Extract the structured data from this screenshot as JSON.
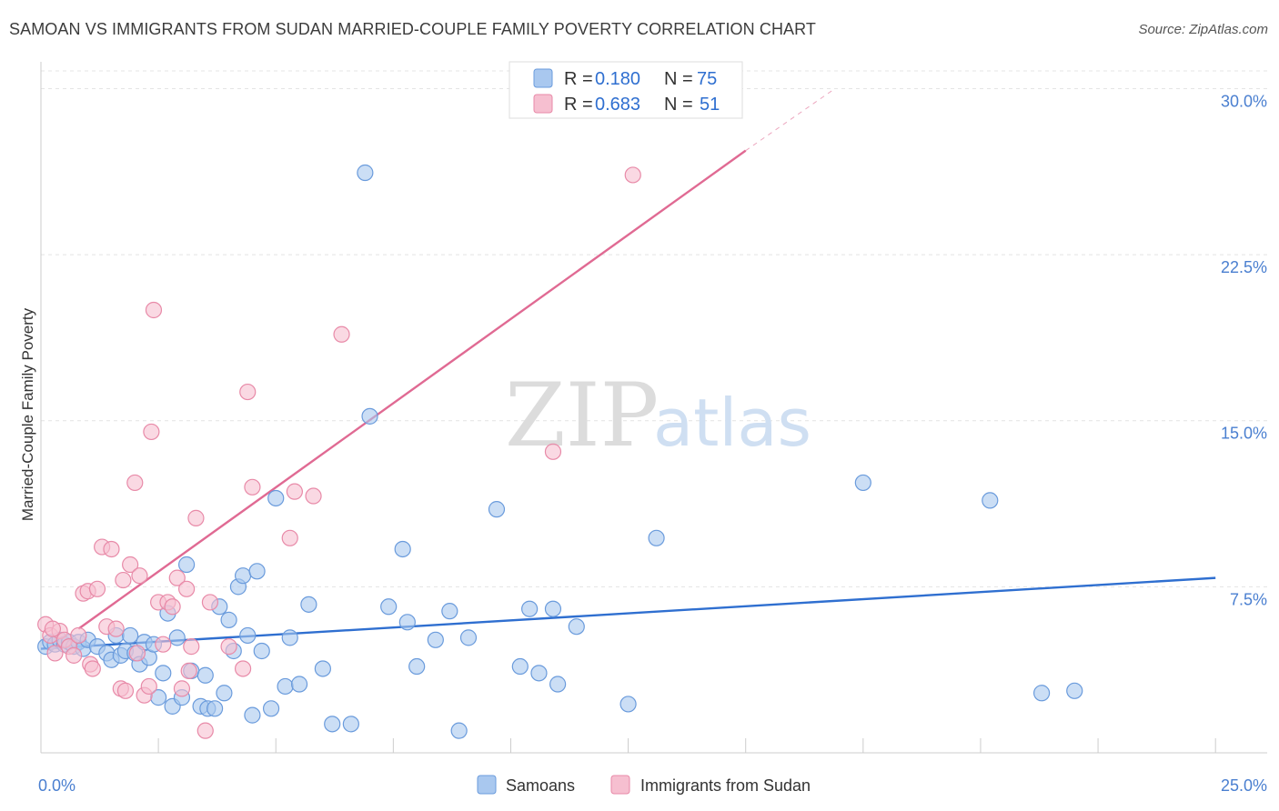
{
  "title": "SAMOAN VS IMMIGRANTS FROM SUDAN MARRIED-COUPLE FAMILY POVERTY CORRELATION CHART",
  "source": "Source: ZipAtlas.com",
  "watermark": {
    "zip": "ZIP",
    "atlas": "atlas"
  },
  "colors": {
    "blue_fill": "#a9c8ef",
    "blue_stroke": "#6a9bdc",
    "blue_line": "#2f6fd0",
    "pink_fill": "#f6bfd0",
    "pink_stroke": "#e88aa8",
    "pink_line": "#e06a93",
    "grid": "#e4e4e4",
    "tick_text": "#4a7fd0"
  },
  "legend": {
    "rows": [
      {
        "r_label": "R =",
        "r_value": "0.180",
        "n_label": "N =",
        "n_value": "75"
      },
      {
        "r_label": "R =",
        "r_value": "0.683",
        "n_label": "N =",
        "n_value": "51"
      }
    ]
  },
  "chart_data": {
    "type": "scatter",
    "title": "SAMOAN VS IMMIGRANTS FROM SUDAN MARRIED-COUPLE FAMILY POVERTY CORRELATION CHART",
    "xlabel": "",
    "ylabel": "Married-Couple Family Poverty",
    "xlim": [
      0,
      26.1
    ],
    "ylim": [
      0,
      30.8
    ],
    "x_tick_labels": [
      {
        "value": 0,
        "label": "0.0%"
      },
      {
        "value": 25,
        "label": "25.0%"
      }
    ],
    "y_tick_labels": [
      {
        "value": 7.5,
        "label": "7.5%"
      },
      {
        "value": 15,
        "label": "15.0%"
      },
      {
        "value": 22.5,
        "label": "22.5%"
      },
      {
        "value": 30,
        "label": "30.0%"
      }
    ],
    "x_minor_ticks": [
      2.5,
      5,
      7.5,
      10,
      12.5,
      15,
      17.5,
      20,
      22.5,
      25
    ],
    "series": [
      {
        "name": "Samoans",
        "color": "#a9c8ef",
        "trend": {
          "x0": 0,
          "y0": 4.7,
          "x1": 25,
          "y1": 7.9
        },
        "points": [
          [
            0.1,
            4.8
          ],
          [
            0.2,
            5.0
          ],
          [
            0.3,
            4.9
          ],
          [
            0.4,
            5.1
          ],
          [
            0.5,
            4.9
          ],
          [
            0.6,
            5.0
          ],
          [
            0.7,
            4.8
          ],
          [
            0.8,
            5.0
          ],
          [
            0.9,
            4.7
          ],
          [
            1.0,
            5.1
          ],
          [
            1.2,
            4.8
          ],
          [
            1.4,
            4.5
          ],
          [
            1.5,
            4.2
          ],
          [
            1.6,
            5.3
          ],
          [
            1.7,
            4.4
          ],
          [
            1.8,
            4.6
          ],
          [
            1.9,
            5.3
          ],
          [
            2.0,
            4.5
          ],
          [
            2.1,
            4.0
          ],
          [
            2.2,
            5.0
          ],
          [
            2.3,
            4.3
          ],
          [
            2.4,
            4.9
          ],
          [
            2.5,
            2.5
          ],
          [
            2.6,
            3.6
          ],
          [
            2.7,
            6.3
          ],
          [
            2.8,
            2.1
          ],
          [
            2.9,
            5.2
          ],
          [
            3.0,
            2.5
          ],
          [
            3.1,
            8.5
          ],
          [
            3.2,
            3.7
          ],
          [
            3.4,
            2.1
          ],
          [
            3.5,
            3.5
          ],
          [
            3.55,
            2.0
          ],
          [
            3.7,
            2.0
          ],
          [
            3.8,
            6.6
          ],
          [
            3.9,
            2.7
          ],
          [
            4.0,
            6.0
          ],
          [
            4.1,
            4.6
          ],
          [
            4.2,
            7.5
          ],
          [
            4.3,
            8.0
          ],
          [
            4.4,
            5.3
          ],
          [
            4.5,
            1.7
          ],
          [
            4.6,
            8.2
          ],
          [
            4.7,
            4.6
          ],
          [
            4.9,
            2.0
          ],
          [
            5.0,
            11.5
          ],
          [
            5.2,
            3.0
          ],
          [
            5.3,
            5.2
          ],
          [
            5.5,
            3.1
          ],
          [
            5.7,
            6.7
          ],
          [
            6.0,
            3.8
          ],
          [
            6.2,
            1.3
          ],
          [
            6.6,
            1.3
          ],
          [
            6.9,
            26.2
          ],
          [
            7.0,
            15.2
          ],
          [
            7.4,
            6.6
          ],
          [
            7.7,
            9.2
          ],
          [
            7.8,
            5.9
          ],
          [
            8.0,
            3.9
          ],
          [
            8.4,
            5.1
          ],
          [
            8.7,
            6.4
          ],
          [
            8.9,
            1.0
          ],
          [
            9.1,
            5.2
          ],
          [
            9.7,
            11.0
          ],
          [
            10.2,
            3.9
          ],
          [
            10.4,
            6.5
          ],
          [
            10.6,
            3.6
          ],
          [
            10.9,
            6.5
          ],
          [
            11.0,
            3.1
          ],
          [
            11.4,
            5.7
          ],
          [
            12.5,
            2.2
          ],
          [
            13.1,
            9.7
          ],
          [
            17.5,
            12.2
          ],
          [
            20.2,
            11.4
          ],
          [
            21.3,
            2.7
          ],
          [
            22.0,
            2.8
          ]
        ]
      },
      {
        "name": "Immigrants from Sudan",
        "color": "#f6bfd0",
        "trend": {
          "x0": 0.8,
          "y0": 5.6,
          "x1": 15.0,
          "y1": 27.2
        },
        "trend_dashed_to": {
          "x": 16.9,
          "y": 30.0
        },
        "points": [
          [
            0.1,
            5.8
          ],
          [
            0.2,
            5.3
          ],
          [
            0.3,
            4.5
          ],
          [
            0.4,
            5.5
          ],
          [
            0.5,
            5.1
          ],
          [
            0.6,
            4.8
          ],
          [
            0.7,
            4.4
          ],
          [
            0.8,
            5.3
          ],
          [
            0.9,
            7.2
          ],
          [
            1.0,
            7.3
          ],
          [
            1.05,
            4.0
          ],
          [
            1.1,
            3.8
          ],
          [
            1.2,
            7.4
          ],
          [
            1.3,
            9.3
          ],
          [
            1.4,
            5.7
          ],
          [
            1.5,
            9.2
          ],
          [
            1.6,
            5.6
          ],
          [
            1.7,
            2.9
          ],
          [
            1.75,
            7.8
          ],
          [
            1.8,
            2.8
          ],
          [
            1.9,
            8.5
          ],
          [
            2.0,
            12.2
          ],
          [
            2.05,
            4.5
          ],
          [
            2.1,
            8.0
          ],
          [
            2.2,
            2.6
          ],
          [
            2.3,
            3.0
          ],
          [
            2.35,
            14.5
          ],
          [
            2.4,
            20.0
          ],
          [
            2.5,
            6.8
          ],
          [
            2.6,
            4.9
          ],
          [
            2.7,
            6.8
          ],
          [
            2.8,
            6.6
          ],
          [
            2.9,
            7.9
          ],
          [
            3.0,
            2.9
          ],
          [
            3.1,
            7.4
          ],
          [
            3.15,
            3.7
          ],
          [
            3.2,
            4.8
          ],
          [
            3.3,
            10.6
          ],
          [
            3.5,
            1.0
          ],
          [
            3.6,
            6.8
          ],
          [
            4.0,
            4.8
          ],
          [
            4.3,
            3.8
          ],
          [
            4.4,
            16.3
          ],
          [
            4.5,
            12.0
          ],
          [
            5.3,
            9.7
          ],
          [
            5.4,
            11.8
          ],
          [
            5.8,
            11.6
          ],
          [
            6.4,
            18.9
          ],
          [
            10.9,
            13.6
          ],
          [
            12.6,
            26.1
          ],
          [
            0.25,
            5.6
          ]
        ]
      }
    ]
  },
  "bottom_legend": {
    "items": [
      "Samoans",
      "Immigrants from Sudan"
    ]
  }
}
